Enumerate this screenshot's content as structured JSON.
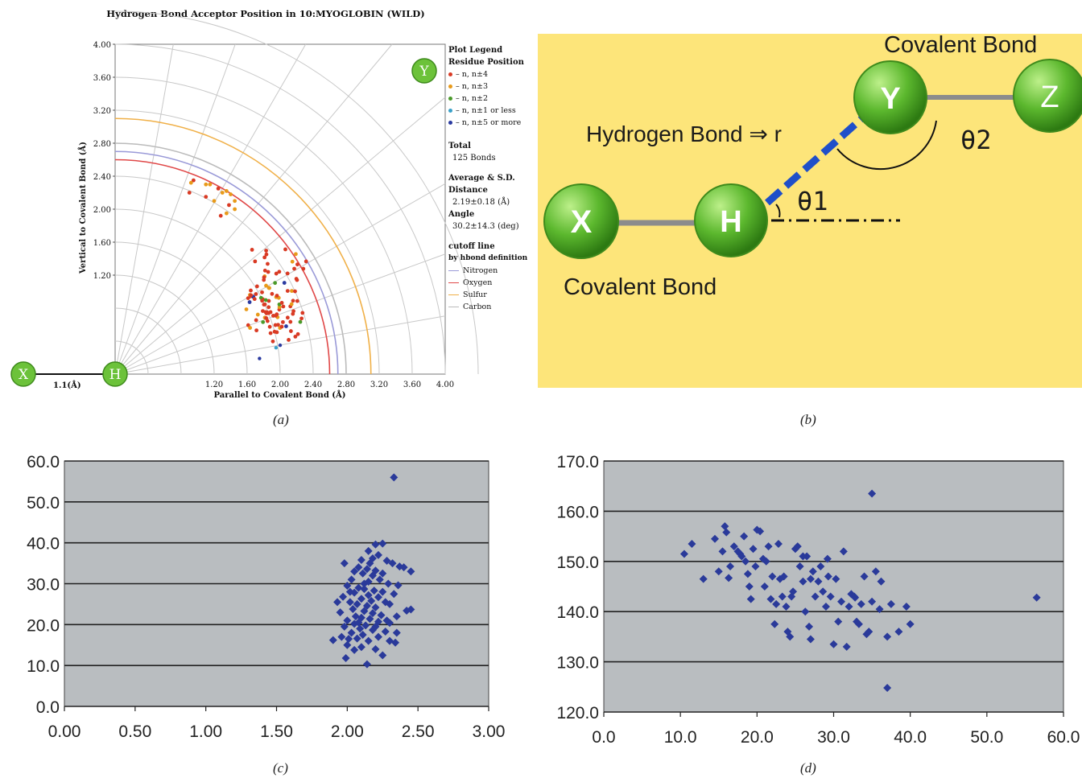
{
  "captions": {
    "a": "(a)",
    "b": "(b)",
    "c": "(c)",
    "d": "(d)"
  },
  "panel_b": {
    "covalent_top": "Covalent Bond",
    "covalent_bottom": "Covalent Bond",
    "hbond_label": "Hydrogen Bond ⇒ r",
    "theta1": "θ1",
    "theta2": "θ2",
    "atoms": {
      "x": "X",
      "h": "H",
      "y": "Y",
      "z": "Z"
    },
    "colors": {
      "background": "#fde57a",
      "atom": "#5cb82e",
      "hbond": "#1f4fc9",
      "bond": "#8c8c8c"
    }
  },
  "chart_data": [
    {
      "id": "a",
      "type": "scatter",
      "title": "Hydrogen Bond Acceptor Position in 10:MYOGLOBIN (WILD)",
      "xlabel": "Parallel to Covalent Bond (Å)",
      "ylabel": "Vertical to Covalent Bond (Å)",
      "xticks": [
        "1.20",
        "1.60",
        "2.00",
        "2.40",
        "2.80",
        "3.20",
        "3.60",
        "4.00"
      ],
      "yticks": [
        "4.00",
        "3.60",
        "3.20",
        "2.80",
        "2.40",
        "2.00",
        "1.60",
        "1.20"
      ],
      "xlim": [
        0,
        4.0
      ],
      "ylim": [
        0,
        4.0
      ],
      "grid": "polar",
      "atoms": {
        "x": "X",
        "h": "H",
        "y": "Y"
      },
      "bond_label": "1.1(Å)",
      "legend": {
        "title": "Plot Legend",
        "subtitle": "Residue Position",
        "entries": [
          {
            "label": "– n, n±4",
            "color": "#d93a24"
          },
          {
            "label": "– n, n±3",
            "color": "#e89a1a"
          },
          {
            "label": "– n, n±2",
            "color": "#4a9a2a"
          },
          {
            "label": "– n, n±1 or less",
            "color": "#3aa0c8"
          },
          {
            "label": "– n, n±5 or more",
            "color": "#2a3aa0"
          }
        ],
        "total_title": "Total",
        "total_value": "125 Bonds",
        "avg_title": "Average & S.D.",
        "distance_title": "Distance",
        "distance_value": "2.19±0.18 (Å)",
        "angle_title": "Angle",
        "angle_value": "30.2±14.3 (deg)",
        "cutoff_title": "cutoff line",
        "cutoff_subtitle": "by hbond definition",
        "cutoffs": [
          {
            "label": "Nitrogen",
            "color": "#9a9ad8",
            "radius": 2.7
          },
          {
            "label": "Oxygen",
            "color": "#e04848",
            "radius": 2.6
          },
          {
            "label": "Sulfur",
            "color": "#f0b048",
            "radius": 3.1
          },
          {
            "label": "Carbon",
            "color": "#bbbbbb",
            "radius": 2.8
          }
        ]
      },
      "upper_cluster": [
        {
          "x": 0.95,
          "y": 2.35,
          "s": 0
        },
        {
          "x": 0.92,
          "y": 2.32,
          "s": 1
        },
        {
          "x": 0.9,
          "y": 2.2,
          "s": 0
        },
        {
          "x": 1.1,
          "y": 2.3,
          "s": 1
        },
        {
          "x": 1.15,
          "y": 2.3,
          "s": 1
        },
        {
          "x": 1.25,
          "y": 2.25,
          "s": 0
        },
        {
          "x": 1.3,
          "y": 2.2,
          "s": 1
        },
        {
          "x": 1.35,
          "y": 2.22,
          "s": 1
        },
        {
          "x": 1.4,
          "y": 2.18,
          "s": 1
        },
        {
          "x": 1.45,
          "y": 2.1,
          "s": 1
        },
        {
          "x": 1.45,
          "y": 2.0,
          "s": 1
        },
        {
          "x": 1.38,
          "y": 2.05,
          "s": 0
        },
        {
          "x": 1.28,
          "y": 1.92,
          "s": 0
        },
        {
          "x": 1.1,
          "y": 2.15,
          "s": 0
        },
        {
          "x": 1.2,
          "y": 2.1,
          "s": 1
        },
        {
          "x": 1.35,
          "y": 1.95,
          "s": 1
        }
      ],
      "lower_cluster_center": {
        "x": 1.95,
        "y": 0.95
      },
      "lower_cluster_count": 105
    },
    {
      "id": "c",
      "type": "scatter",
      "xlim": [
        0,
        3.0
      ],
      "ylim": [
        0,
        60
      ],
      "xticks": [
        "0.00",
        "0.50",
        "1.00",
        "1.50",
        "2.00",
        "2.50",
        "3.00"
      ],
      "yticks": [
        "60.0",
        "50.0",
        "40.0",
        "30.0",
        "20.0",
        "10.0",
        "0.0"
      ],
      "color": "#2a3a9a",
      "background": "#b9bdc0",
      "points": [
        [
          2.33,
          56.0
        ],
        [
          2.2,
          39.6
        ],
        [
          2.25,
          39.8
        ],
        [
          2.15,
          38.0
        ],
        [
          2.22,
          37.0
        ],
        [
          2.18,
          36.2
        ],
        [
          2.1,
          35.8
        ],
        [
          2.28,
          35.6
        ],
        [
          1.98,
          35.0
        ],
        [
          2.32,
          35.0
        ],
        [
          2.37,
          34.2
        ],
        [
          2.4,
          34.0
        ],
        [
          2.45,
          33.0
        ],
        [
          2.08,
          34.0
        ],
        [
          2.14,
          33.6
        ],
        [
          2.2,
          33.2
        ],
        [
          2.05,
          33.0
        ],
        [
          2.11,
          32.5
        ],
        [
          2.18,
          32.0
        ],
        [
          2.23,
          31.0
        ],
        [
          2.03,
          31.0
        ],
        [
          2.15,
          30.5
        ],
        [
          2.29,
          30.0
        ],
        [
          2.36,
          29.6
        ],
        [
          2.0,
          29.5
        ],
        [
          2.08,
          29.0
        ],
        [
          2.12,
          28.7
        ],
        [
          2.19,
          28.3
        ],
        [
          2.25,
          28.0
        ],
        [
          2.33,
          27.5
        ],
        [
          2.05,
          27.8
        ],
        [
          2.15,
          27.2
        ],
        [
          2.22,
          26.7
        ],
        [
          1.97,
          26.8
        ],
        [
          2.1,
          26.3
        ],
        [
          2.17,
          25.8
        ],
        [
          2.27,
          25.5
        ],
        [
          2.02,
          25.5
        ],
        [
          2.07,
          25.0
        ],
        [
          2.14,
          24.6
        ],
        [
          2.2,
          24.2
        ],
        [
          2.45,
          23.7
        ],
        [
          2.42,
          23.4
        ],
        [
          2.04,
          23.8
        ],
        [
          2.12,
          23.3
        ],
        [
          1.95,
          23.0
        ],
        [
          2.18,
          22.8
        ],
        [
          2.24,
          22.3
        ],
        [
          2.06,
          22.0
        ],
        [
          2.1,
          21.7
        ],
        [
          2.16,
          21.4
        ],
        [
          2.0,
          21.0
        ],
        [
          2.22,
          20.7
        ],
        [
          2.3,
          20.4
        ],
        [
          2.05,
          20.2
        ],
        [
          2.13,
          19.8
        ],
        [
          1.98,
          19.5
        ],
        [
          2.09,
          19.0
        ],
        [
          2.18,
          18.7
        ],
        [
          2.27,
          18.3
        ],
        [
          2.35,
          18.0
        ],
        [
          2.03,
          18.0
        ],
        [
          2.11,
          17.5
        ],
        [
          2.22,
          17.0
        ],
        [
          1.96,
          17.0
        ],
        [
          2.07,
          16.6
        ],
        [
          1.9,
          16.2
        ],
        [
          2.15,
          16.0
        ],
        [
          2.3,
          16.0
        ],
        [
          2.34,
          15.6
        ],
        [
          2.0,
          15.0
        ],
        [
          2.1,
          14.5
        ],
        [
          2.2,
          14.0
        ],
        [
          2.05,
          13.8
        ],
        [
          2.25,
          12.5
        ],
        [
          1.99,
          11.8
        ],
        [
          2.14,
          10.3
        ],
        [
          2.35,
          22.0
        ],
        [
          2.3,
          25.0
        ],
        [
          2.25,
          32.5
        ],
        [
          2.12,
          30.0
        ],
        [
          2.02,
          28.0
        ],
        [
          2.16,
          35.0
        ],
        [
          2.28,
          21.0
        ],
        [
          2.08,
          20.5
        ],
        [
          1.93,
          25.5
        ],
        [
          2.2,
          19.5
        ],
        [
          2.01,
          16.5
        ]
      ]
    },
    {
      "id": "d",
      "type": "scatter",
      "xlim": [
        0,
        60
      ],
      "ylim": [
        120,
        170
      ],
      "xticks": [
        "0.0",
        "10.0",
        "20.0",
        "30.0",
        "40.0",
        "50.0",
        "60.0"
      ],
      "yticks": [
        "170.0",
        "160.0",
        "150.0",
        "140.0",
        "130.0",
        "120.0"
      ],
      "color": "#2a3a9a",
      "background": "#b9bdc0",
      "points": [
        [
          35,
          163.5
        ],
        [
          56.5,
          142.8
        ],
        [
          37,
          124.8
        ],
        [
          10.5,
          151.5
        ],
        [
          11.5,
          153.5
        ],
        [
          13,
          146.5
        ],
        [
          14.5,
          154.5
        ],
        [
          15,
          148
        ],
        [
          15.5,
          152
        ],
        [
          15.8,
          157
        ],
        [
          16,
          155.8
        ],
        [
          16.3,
          146.7
        ],
        [
          16.5,
          149
        ],
        [
          17,
          153
        ],
        [
          17.5,
          152
        ],
        [
          18,
          151
        ],
        [
          18.3,
          155
        ],
        [
          18.5,
          150
        ],
        [
          18.8,
          147.5
        ],
        [
          19,
          145
        ],
        [
          19.2,
          142.5
        ],
        [
          19.5,
          152.5
        ],
        [
          19.8,
          149
        ],
        [
          20,
          156.3
        ],
        [
          20.4,
          156
        ],
        [
          20.8,
          150.5
        ],
        [
          21,
          145
        ],
        [
          21.5,
          153
        ],
        [
          21.8,
          142.5
        ],
        [
          22,
          147
        ],
        [
          22.3,
          137.5
        ],
        [
          22.5,
          141.5
        ],
        [
          22.8,
          153.5
        ],
        [
          23,
          146.5
        ],
        [
          23.3,
          143
        ],
        [
          23.5,
          147
        ],
        [
          23.8,
          141
        ],
        [
          24,
          136
        ],
        [
          24.3,
          135
        ],
        [
          24.5,
          143
        ],
        [
          25,
          152.5
        ],
        [
          25.3,
          153
        ],
        [
          25.6,
          149
        ],
        [
          26,
          146
        ],
        [
          26.3,
          140
        ],
        [
          26.5,
          151
        ],
        [
          26.8,
          137
        ],
        [
          27,
          134.5
        ],
        [
          27.3,
          148
        ],
        [
          27.6,
          143
        ],
        [
          28,
          146
        ],
        [
          28.3,
          149
        ],
        [
          28.6,
          144
        ],
        [
          29,
          141
        ],
        [
          29.3,
          147
        ],
        [
          29.6,
          143
        ],
        [
          30,
          133.5
        ],
        [
          30.3,
          146.5
        ],
        [
          30.6,
          138
        ],
        [
          31,
          142
        ],
        [
          31.3,
          152
        ],
        [
          31.7,
          133
        ],
        [
          32,
          141
        ],
        [
          32.3,
          143.5
        ],
        [
          32.7,
          143
        ],
        [
          33,
          138
        ],
        [
          33.3,
          137.5
        ],
        [
          33.6,
          141.5
        ],
        [
          34,
          147
        ],
        [
          34.3,
          135.5
        ],
        [
          34.6,
          136
        ],
        [
          35,
          142
        ],
        [
          35.5,
          148
        ],
        [
          36,
          140.5
        ],
        [
          37,
          135
        ],
        [
          37.5,
          141.5
        ],
        [
          38.5,
          136
        ],
        [
          39.5,
          141
        ],
        [
          40,
          137.5
        ],
        [
          26,
          151
        ],
        [
          27,
          146.5
        ],
        [
          21.2,
          150
        ],
        [
          17.8,
          151.5
        ],
        [
          24.7,
          144
        ],
        [
          29.2,
          150.5
        ],
        [
          32.8,
          142.8
        ],
        [
          36.2,
          146
        ]
      ]
    }
  ]
}
